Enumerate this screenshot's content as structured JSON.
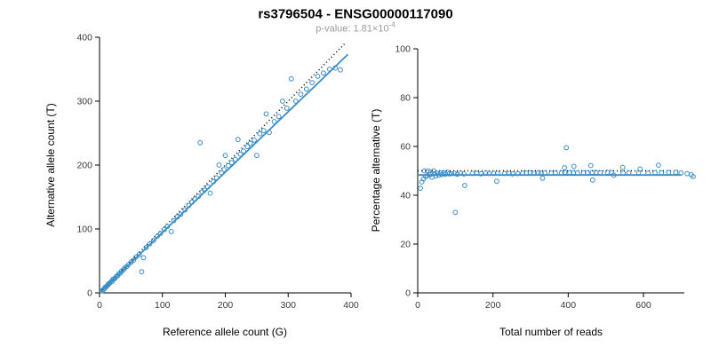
{
  "title": "rs3796504 - ENSG00000117090",
  "subtitle": {
    "base": "p-value: 1.81×10",
    "exponent": "-4"
  },
  "colors": {
    "point": "#3b8ec8",
    "fit_line": "#3b8ec8",
    "identity_line": "#000000",
    "axis": "#000000",
    "subtitle_text": "#9b9b9b",
    "title_text": "#000000"
  },
  "chart_data": [
    {
      "type": "scatter",
      "title": "",
      "xlabel": "Reference allele count (G)",
      "ylabel": "Alternative allele count (T)",
      "xlim": [
        0,
        400
      ],
      "ylim": [
        0,
        400
      ],
      "xticks": [
        0,
        100,
        200,
        300,
        400
      ],
      "yticks": [
        0,
        100,
        200,
        300,
        400
      ],
      "grid": false,
      "legend": "none",
      "fit_line": {
        "type": "linear",
        "slope": 0.945,
        "intercept": 0,
        "x_range": [
          0,
          395
        ]
      },
      "identity_line": {
        "type": "linear",
        "slope": 1,
        "intercept": 0,
        "x_range": [
          4,
          390
        ],
        "style": "dotted"
      },
      "points": [
        [
          4,
          3
        ],
        [
          6,
          5
        ],
        [
          8,
          7
        ],
        [
          9,
          9
        ],
        [
          11,
          10
        ],
        [
          13,
          12
        ],
        [
          14,
          14
        ],
        [
          16,
          15
        ],
        [
          18,
          17
        ],
        [
          20,
          18
        ],
        [
          21,
          21
        ],
        [
          23,
          22
        ],
        [
          25,
          23
        ],
        [
          27,
          26
        ],
        [
          29,
          27
        ],
        [
          31,
          30
        ],
        [
          33,
          31
        ],
        [
          35,
          34
        ],
        [
          38,
          36
        ],
        [
          40,
          39
        ],
        [
          43,
          41
        ],
        [
          46,
          44
        ],
        [
          50,
          48
        ],
        [
          54,
          51
        ],
        [
          58,
          56
        ],
        [
          63,
          60
        ],
        [
          67,
          33
        ],
        [
          70,
          55
        ],
        [
          74,
          71
        ],
        [
          80,
          77
        ],
        [
          86,
          82
        ],
        [
          92,
          89
        ],
        [
          97,
          93
        ],
        [
          103,
          99
        ],
        [
          108,
          104
        ],
        [
          114,
          96
        ],
        [
          118,
          113
        ],
        [
          124,
          119
        ],
        [
          129,
          123
        ],
        [
          136,
          130
        ],
        [
          142,
          137
        ],
        [
          147,
          142
        ],
        [
          152,
          147
        ],
        [
          157,
          151
        ],
        [
          160,
          235
        ],
        [
          163,
          158
        ],
        [
          167,
          161
        ],
        [
          172,
          166
        ],
        [
          176,
          156
        ],
        [
          181,
          174
        ],
        [
          186,
          180
        ],
        [
          190,
          200
        ],
        [
          194,
          188
        ],
        [
          198,
          193
        ],
        [
          200,
          215
        ],
        [
          205,
          199
        ],
        [
          210,
          204
        ],
        [
          216,
          209
        ],
        [
          220,
          240
        ],
        [
          224,
          217
        ],
        [
          229,
          222
        ],
        [
          235,
          229
        ],
        [
          240,
          234
        ],
        [
          246,
          239
        ],
        [
          250,
          215
        ],
        [
          255,
          249
        ],
        [
          261,
          254
        ],
        [
          265,
          280
        ],
        [
          270,
          251
        ],
        [
          278,
          268
        ],
        [
          285,
          276
        ],
        [
          291,
          300
        ],
        [
          298,
          289
        ],
        [
          305,
          335
        ],
        [
          312,
          300
        ],
        [
          320,
          311
        ],
        [
          329,
          319
        ],
        [
          338,
          329
        ],
        [
          347,
          339
        ],
        [
          356,
          344
        ],
        [
          366,
          350
        ],
        [
          375,
          352
        ],
        [
          383,
          349
        ]
      ]
    },
    {
      "type": "scatter",
      "title": "",
      "xlabel": "Total number of reads",
      "ylabel": "Percentage alternative (T)",
      "xlim": [
        0,
        700
      ],
      "ylim": [
        0,
        100
      ],
      "xticks": [
        0,
        200,
        400,
        600
      ],
      "yticks": [
        0,
        20,
        40,
        60,
        80,
        100
      ],
      "grid": false,
      "legend": "none",
      "fit_line": {
        "type": "hline",
        "y": 48.3,
        "x_range": [
          0,
          700
        ]
      },
      "identity_line": {
        "type": "hline",
        "y": 50,
        "x_range": [
          0,
          700
        ],
        "style": "dotted"
      },
      "points": "derived",
      "derivation": {
        "source": "chart_data[0].points",
        "x": "ref+alt",
        "y": "100*alt/(ref+alt)"
      }
    }
  ]
}
